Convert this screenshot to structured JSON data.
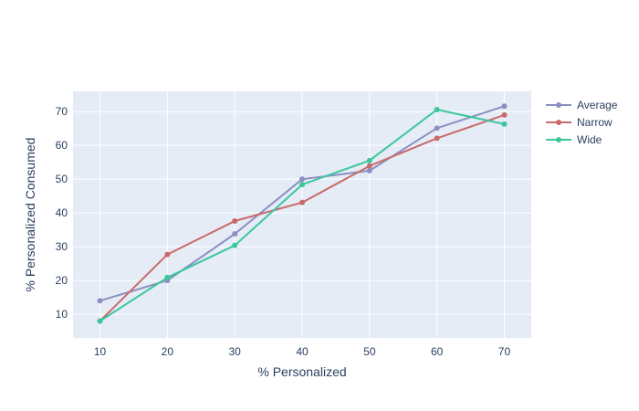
{
  "chart_data": {
    "type": "line",
    "title": "",
    "xlabel": "% Personalized",
    "ylabel": "% Personalized Consumed",
    "xlim": [
      6,
      74
    ],
    "ylim": [
      3,
      76
    ],
    "xticks": [
      10,
      20,
      30,
      40,
      50,
      60,
      70
    ],
    "yticks": [
      10,
      20,
      30,
      40,
      50,
      60,
      70
    ],
    "grid": true,
    "legend_position": "top-right",
    "x": [
      10,
      20,
      30,
      40,
      50,
      60,
      70
    ],
    "series": [
      {
        "name": "Average",
        "color": "#8c8fc4",
        "values": [
          14.0,
          20.0,
          33.8,
          50.0,
          52.5,
          65.1,
          71.6
        ]
      },
      {
        "name": "Narrow",
        "color": "#c96a6a",
        "values": [
          8.0,
          27.7,
          37.6,
          43.1,
          53.9,
          62.1,
          69.0
        ]
      },
      {
        "name": "Wide",
        "color": "#3cc79d",
        "values": [
          8.0,
          20.9,
          30.4,
          48.4,
          55.5,
          70.6,
          66.3
        ]
      }
    ],
    "colors": {
      "plot_bg": "#e5ecf6",
      "grid": "#ffffff",
      "text": "#2a3f5f"
    }
  }
}
